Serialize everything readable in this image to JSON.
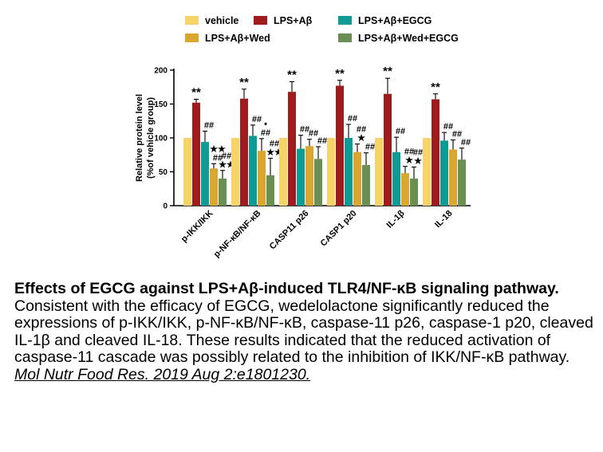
{
  "chart_data": {
    "type": "bar",
    "title": "",
    "xlabel": "",
    "ylabel_line1": "Relative protein level",
    "ylabel_line2": "(%of vehicle group)",
    "ylim": [
      0,
      200
    ],
    "yticks": [
      0,
      50,
      100,
      150,
      200
    ],
    "grid": false,
    "legend_placement": "top",
    "categories": [
      "p-IKK/IKK",
      "p-NF-κB/NF-κB",
      "CASP11 p26",
      "CASP1 p20",
      "IL-1β",
      "IL-18"
    ],
    "series": [
      {
        "name": "vehicle",
        "color": "#F7D46A",
        "values": [
          100,
          100,
          100,
          100,
          100,
          100
        ],
        "errors": [
          0,
          0,
          0,
          0,
          0,
          0
        ],
        "annotations": [
          "",
          "",
          "",
          "",
          "",
          ""
        ]
      },
      {
        "name": "LPS+Aβ",
        "color": "#A01C1C",
        "values": [
          152,
          158,
          168,
          177,
          165,
          157
        ],
        "errors": [
          5,
          14,
          15,
          8,
          23,
          8
        ],
        "annotations": [
          "**",
          "**",
          "**",
          "**",
          "**",
          "**"
        ]
      },
      {
        "name": "LPS+Aβ+EGCG",
        "color": "#109A96",
        "values": [
          94,
          103,
          84,
          100,
          79,
          96
        ],
        "errors": [
          16,
          16,
          20,
          20,
          22,
          12
        ],
        "annotations": [
          "##",
          "##",
          "##",
          "##",
          "##",
          "##"
        ]
      },
      {
        "name": "LPS+Aβ+Wed",
        "color": "#D9A62E",
        "values": [
          55,
          81,
          88,
          79,
          48,
          83
        ],
        "errors": [
          7,
          18,
          10,
          12,
          10,
          14
        ],
        "annotations": [
          "★★|##",
          "•|##",
          "##",
          "##|★",
          "##|★",
          "##"
        ]
      },
      {
        "name": "LPS+Aβ+Wed+EGCG",
        "color": "#6B8F52",
        "values": [
          40,
          45,
          69,
          60,
          40,
          68
        ],
        "errors": [
          12,
          25,
          18,
          18,
          17,
          17
        ],
        "annotations": [
          "##|★★",
          "##|★★",
          "##",
          "##",
          "##|★",
          "##"
        ]
      }
    ]
  },
  "caption": {
    "title": "Effects of EGCG against LPS+Aβ-induced TLR4/NF-κB signaling pathway.",
    "body": "Consistent with the efficacy of EGCG, wedelolactone significantly reduced the expressions of p-IKK/IKK, p-NF-κB/NF-κB, caspase-11 p26, caspase-1 p20, cleaved IL-1β and cleaved IL-18. These results indicated that the reduced activation of caspase-11 cascade was possibly related to the inhibition of IKK/NF-κB pathway. ",
    "citation": "Mol Nutr Food Res. 2019 Aug 2:e1801230."
  }
}
